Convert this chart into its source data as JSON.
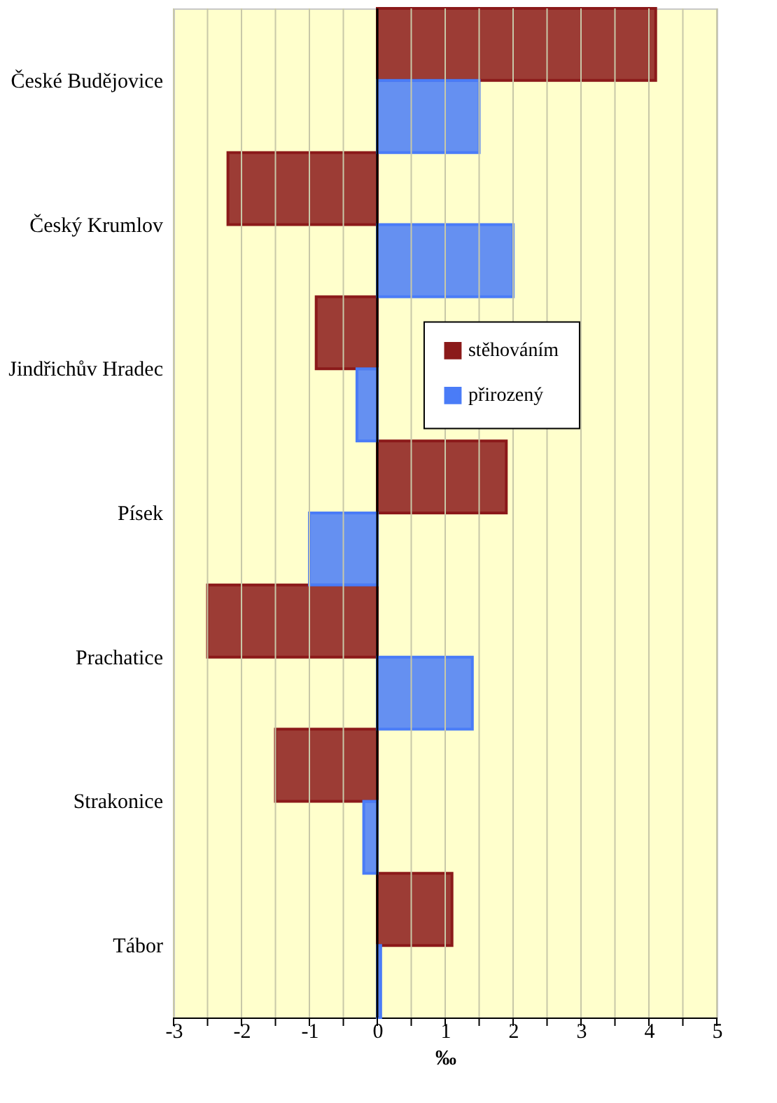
{
  "chart_data": {
    "type": "bar",
    "orientation": "horizontal",
    "xlabel": "‰",
    "categories": [
      "České Budějovice",
      "Český Krumlov",
      "Jindřichův Hradec",
      "Písek",
      "Prachatice",
      "Strakonice",
      "Tábor"
    ],
    "series": [
      {
        "name": "stěhováním",
        "color": "#8b1a1a",
        "values": [
          4.1,
          -2.2,
          -0.9,
          1.9,
          -2.5,
          -1.5,
          1.1
        ]
      },
      {
        "name": "přirozený",
        "color": "#4a7cf7",
        "values": [
          1.5,
          2.0,
          -0.3,
          -1.0,
          1.4,
          -0.2,
          0.05
        ]
      }
    ],
    "xlim": [
      -3,
      5
    ],
    "xticks": [
      -3,
      {
        "value": -2.5,
        "label": null
      },
      -2,
      {
        "value": -1.5,
        "label": null
      },
      -1,
      {
        "value": -0.5,
        "label": null
      },
      0,
      {
        "value": 0.5,
        "label": null
      },
      1,
      {
        "value": 1.5,
        "label": null
      },
      2,
      {
        "value": 2.5,
        "label": null
      },
      3,
      {
        "value": 3.5,
        "label": null
      },
      4,
      {
        "value": 4.5,
        "label": null
      },
      5
    ],
    "grid": "x",
    "legend": "right"
  }
}
